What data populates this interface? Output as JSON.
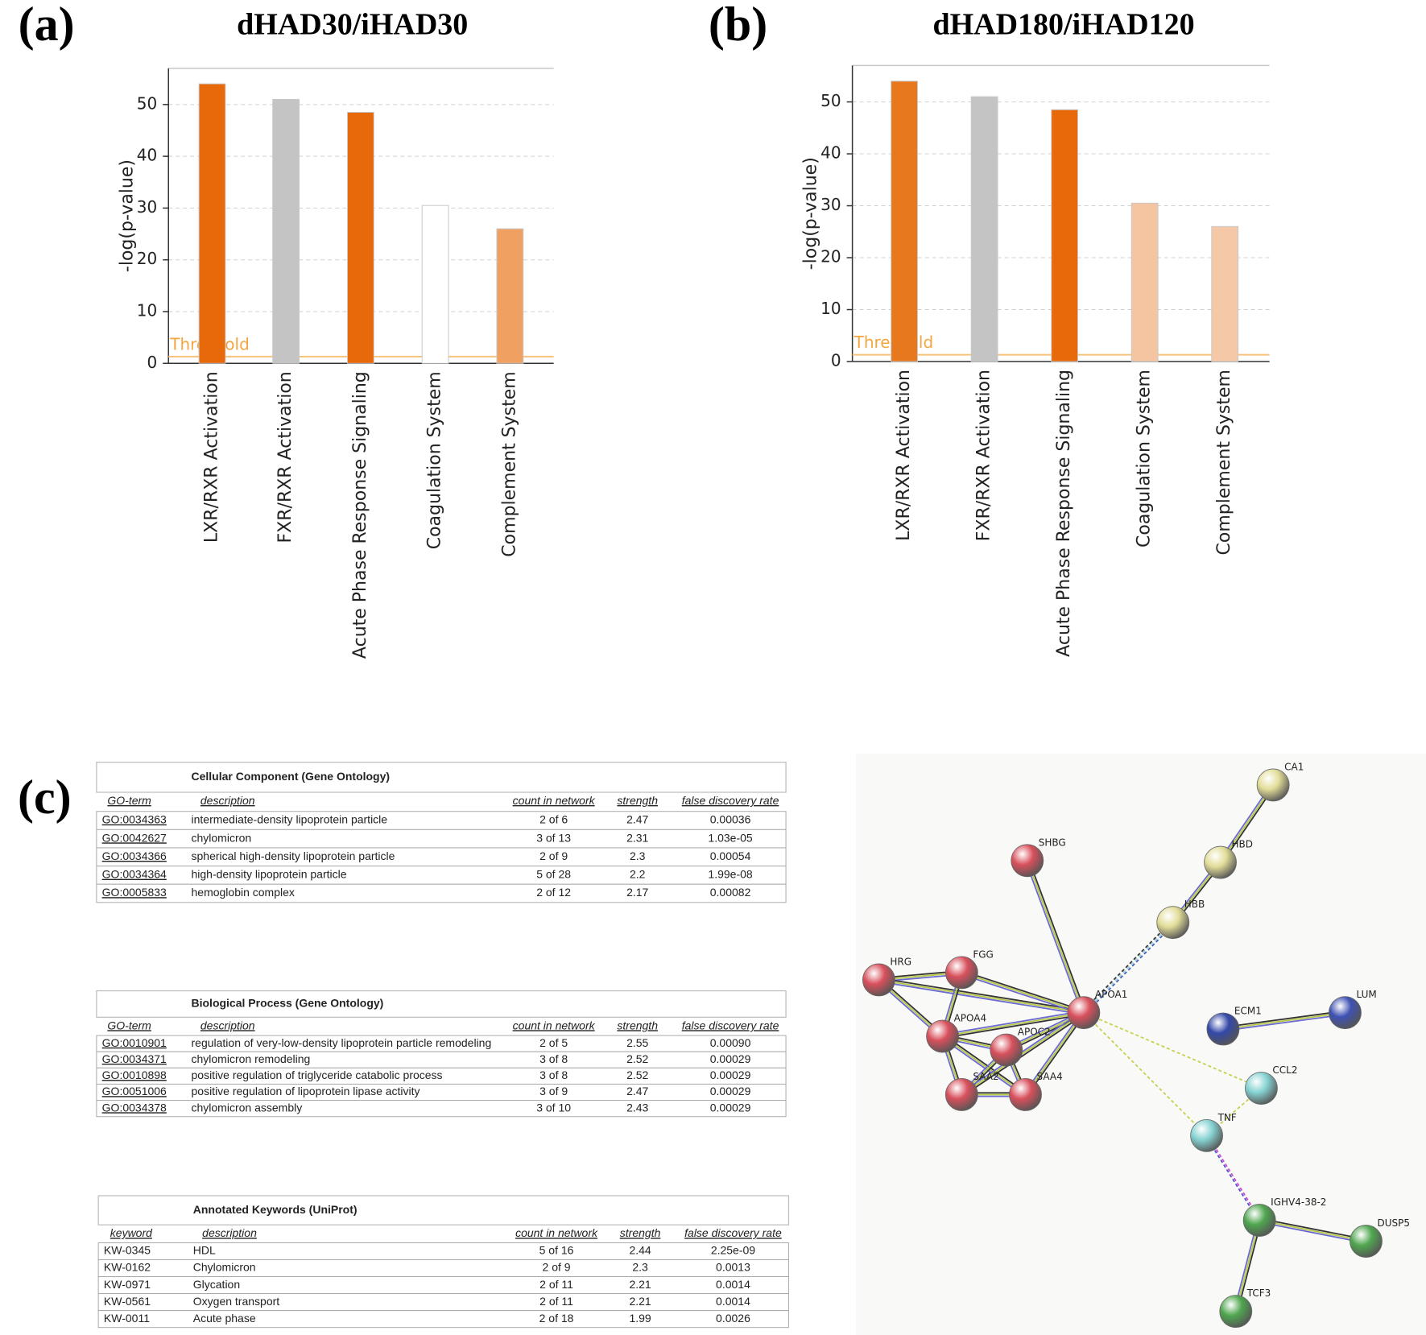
{
  "chart_data": [
    {
      "type": "bar",
      "panel": "(a)",
      "title": "dHAD30/iHAD30",
      "ylabel": "-log(p-value)",
      "categories": [
        "LXR/RXR Activation",
        "FXR/RXR Activation",
        "Acute Phase Response Signaling",
        "Coagulation System",
        "Complement System"
      ],
      "values": [
        54,
        51,
        48.5,
        30.5,
        26
      ],
      "colors": [
        "#e8690a",
        "#c4c4c4",
        "#e8690a",
        "#ffffff",
        "#f0a060"
      ],
      "ylim": [
        0,
        57
      ],
      "yticks": [
        0,
        10,
        20,
        30,
        40,
        50
      ],
      "grid": true,
      "threshold": 1.3,
      "threshold_label": "Threshold"
    },
    {
      "type": "bar",
      "panel": "(b)",
      "title": "dHAD180/iHAD120",
      "ylabel": "-log(p-value)",
      "categories": [
        "LXR/RXR Activation",
        "FXR/RXR Activation",
        "Acute Phase Response Signaling",
        "Coagulation System",
        "Complement System"
      ],
      "values": [
        54,
        51,
        48.5,
        30.5,
        26
      ],
      "colors": [
        "#e8781e",
        "#c4c4c4",
        "#e8690a",
        "#f5c4a0",
        "#f5c8a8"
      ],
      "ylim": [
        0,
        57
      ],
      "yticks": [
        0,
        10,
        20,
        30,
        40,
        50
      ],
      "grid": true,
      "threshold": 1.3,
      "threshold_label": "Threshold"
    }
  ],
  "panel_c": "(c)",
  "tables": [
    {
      "title": "Cellular Component (Gene Ontology)",
      "header": [
        "GO-term",
        "description",
        "count in network",
        "strength",
        "false discovery rate"
      ],
      "rows": [
        [
          "GO:0034363",
          "intermediate-density lipoprotein particle",
          "2 of 6",
          "2.47",
          "0.00036"
        ],
        [
          "GO:0042627",
          "chylomicron",
          "3 of 13",
          "2.31",
          "1.03e-05"
        ],
        [
          "GO:0034366",
          "spherical high-density lipoprotein particle",
          "2 of 9",
          "2.3",
          "0.00054"
        ],
        [
          "GO:0034364",
          "high-density lipoprotein particle",
          "5 of 28",
          "2.2",
          "1.99e-08"
        ],
        [
          "GO:0005833",
          "hemoglobin complex",
          "2 of 12",
          "2.17",
          "0.00082"
        ]
      ]
    },
    {
      "title": "Biological Process (Gene Ontology)",
      "header": [
        "GO-term",
        "description",
        "count in network",
        "strength",
        "false discovery rate"
      ],
      "rows": [
        [
          "GO:0010901",
          "regulation of very-low-density lipoprotein particle remodeling",
          "2 of 5",
          "2.55",
          "0.00090"
        ],
        [
          "GO:0034371",
          "chylomicron remodeling",
          "3 of 8",
          "2.52",
          "0.00029"
        ],
        [
          "GO:0010898",
          "positive regulation of triglyceride catabolic process",
          "3 of 8",
          "2.52",
          "0.00029"
        ],
        [
          "GO:0051006",
          "positive regulation of lipoprotein lipase activity",
          "3 of 9",
          "2.47",
          "0.00029"
        ],
        [
          "GO:0034378",
          "chylomicron assembly",
          "3 of 10",
          "2.43",
          "0.00029"
        ]
      ]
    },
    {
      "title": "Annotated Keywords (UniProt)",
      "header": [
        "keyword",
        "description",
        "count in network",
        "strength",
        "false discovery rate"
      ],
      "rows": [
        [
          "KW-0345",
          "HDL",
          "5 of 16",
          "2.44",
          "2.25e-09"
        ],
        [
          "KW-0162",
          "Chylomicron",
          "2 of 9",
          "2.3",
          "0.0013"
        ],
        [
          "KW-0971",
          "Glycation",
          "2 of 11",
          "2.21",
          "0.0014"
        ],
        [
          "KW-0561",
          "Oxygen transport",
          "2 of 11",
          "2.21",
          "0.0014"
        ],
        [
          "KW-0011",
          "Acute phase",
          "2 of 18",
          "1.99",
          "0.0026"
        ]
      ]
    }
  ],
  "network": {
    "nodes": [
      {
        "label": "CA1",
        "color": "#e2dd98"
      },
      {
        "label": "HBD",
        "color": "#e2dd98"
      },
      {
        "label": "HBB",
        "color": "#e2dd98"
      },
      {
        "label": "SHBG",
        "color": "#d8505c"
      },
      {
        "label": "HRG",
        "color": "#d8505c"
      },
      {
        "label": "FGG",
        "color": "#d8505c"
      },
      {
        "label": "APOA1",
        "color": "#d8505c"
      },
      {
        "label": "APOA4",
        "color": "#d8505c"
      },
      {
        "label": "APOC2",
        "color": "#d8505c"
      },
      {
        "label": "SAA2",
        "color": "#d8505c"
      },
      {
        "label": "SAA4",
        "color": "#d8505c"
      },
      {
        "label": "ECM1",
        "color": "#3348a8"
      },
      {
        "label": "LUM",
        "color": "#3f52b4"
      },
      {
        "label": "CCL2",
        "color": "#86d2d2"
      },
      {
        "label": "TNF",
        "color": "#86d2d2"
      },
      {
        "label": "IGHV4-38-2",
        "color": "#4fa64f"
      },
      {
        "label": "DUSP5",
        "color": "#4fa64f"
      },
      {
        "label": "TCF3",
        "color": "#4fa64f"
      }
    ]
  }
}
